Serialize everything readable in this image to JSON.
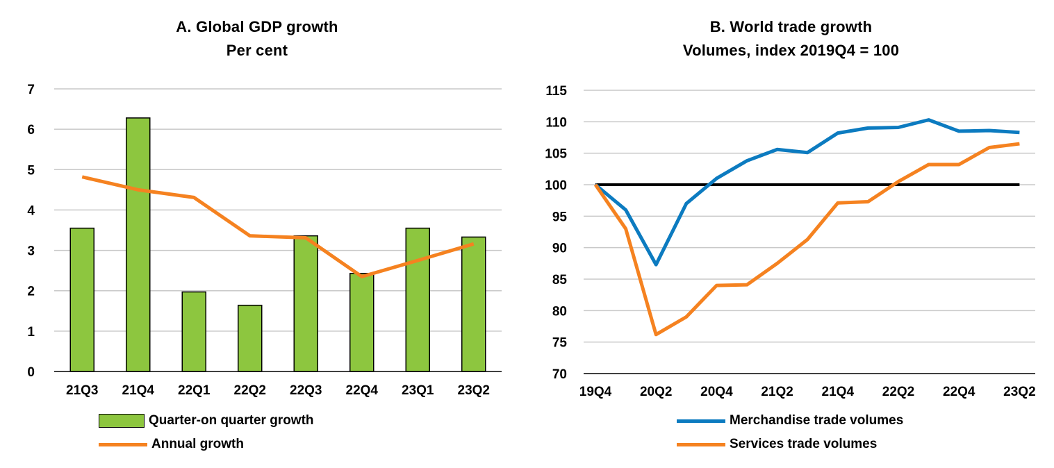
{
  "chart_data": [
    {
      "type": "bar",
      "title": "A. Global GDP growth",
      "subtitle": "Per cent",
      "categories": [
        "21Q3",
        "21Q4",
        "22Q1",
        "22Q2",
        "22Q3",
        "22Q4",
        "23Q1",
        "23Q2"
      ],
      "series": [
        {
          "name": "Quarter-on quarter growth",
          "type": "bar",
          "color": "#8dc63f",
          "values": [
            3.55,
            6.28,
            1.97,
            1.64,
            3.36,
            2.43,
            3.55,
            3.33
          ]
        },
        {
          "name": "Annual growth",
          "type": "line",
          "color": "#f58220",
          "values": [
            4.82,
            4.5,
            4.31,
            3.36,
            3.31,
            2.35,
            2.75,
            3.16
          ]
        }
      ],
      "ylim": [
        0,
        7
      ],
      "yticks": [
        0,
        1,
        2,
        3,
        4,
        5,
        6,
        7
      ],
      "grid": true,
      "legend": "bottom-left"
    },
    {
      "type": "line",
      "title": "B. World trade growth",
      "subtitle": "Volumes, index 2019Q4 = 100",
      "x": [
        "19Q4",
        "20Q1",
        "20Q2",
        "20Q3",
        "20Q4",
        "21Q1",
        "21Q2",
        "21Q3",
        "21Q4",
        "22Q1",
        "22Q2",
        "22Q3",
        "22Q4",
        "23Q1",
        "23Q2"
      ],
      "xtick_labels": [
        "19Q4",
        "20Q2",
        "20Q4",
        "21Q2",
        "21Q4",
        "22Q2",
        "22Q4",
        "23Q2"
      ],
      "series": [
        {
          "name": "Merchandise trade volumes",
          "color": "#0c7bc0",
          "values": [
            100,
            96,
            87.3,
            97,
            101,
            103.8,
            105.6,
            105.1,
            108.2,
            109,
            109.1,
            110.3,
            108.5,
            108.6,
            108.3
          ]
        },
        {
          "name": "Services trade volumes",
          "color": "#f58220",
          "values": [
            100,
            93,
            76.2,
            79,
            84,
            84.1,
            87.5,
            91.3,
            97.1,
            97.3,
            100.5,
            103.2,
            103.2,
            105.9,
            106.5
          ]
        }
      ],
      "reference_line": {
        "value": 100,
        "color": "#000000"
      },
      "ylim": [
        70,
        115
      ],
      "yticks": [
        70,
        75,
        80,
        85,
        90,
        95,
        100,
        105,
        110,
        115
      ],
      "grid": true,
      "legend": "bottom-center"
    }
  ]
}
